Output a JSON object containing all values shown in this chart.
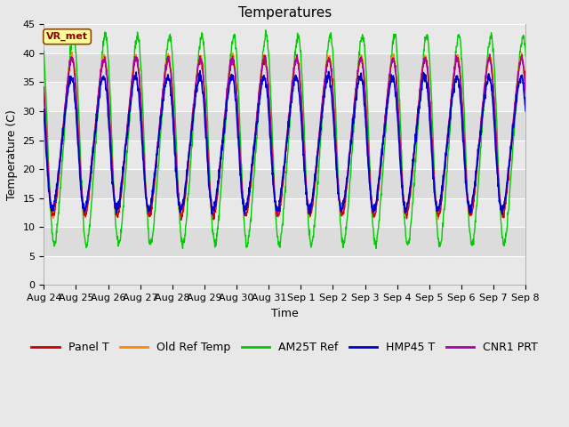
{
  "title": "Temperatures",
  "xlabel": "Time",
  "ylabel": "Temperature (C)",
  "ylim": [
    0,
    45
  ],
  "yticks": [
    0,
    5,
    10,
    15,
    20,
    25,
    30,
    35,
    40,
    45
  ],
  "annotation_text": "VR_met",
  "annotation_color": "#8B0000",
  "annotation_bg": "#FFFF99",
  "series_colors": [
    "#CC0000",
    "#FF8800",
    "#00CC00",
    "#0000CC",
    "#AA00AA"
  ],
  "series_labels": [
    "Panel T",
    "Old Ref Temp",
    "AM25T Ref",
    "HMP45 T",
    "CNR1 PRT"
  ],
  "bg_color": "#E8E8E8",
  "plot_bg": "#F5F5F5",
  "band_colors": [
    "#E8E8E8",
    "#DCDCDC"
  ],
  "x_date_labels": [
    "Aug 24",
    "Aug 25",
    "Aug 26",
    "Aug 27",
    "Aug 28",
    "Aug 29",
    "Aug 30",
    "Aug 31",
    "Sep 1",
    "Sep 2",
    "Sep 3",
    "Sep 4",
    "Sep 5",
    "Sep 6",
    "Sep 7",
    "Sep 8"
  ],
  "n_days": 15.0,
  "n_points": 1500,
  "title_fontsize": 11,
  "label_fontsize": 9,
  "tick_fontsize": 8,
  "legend_fontsize": 9
}
